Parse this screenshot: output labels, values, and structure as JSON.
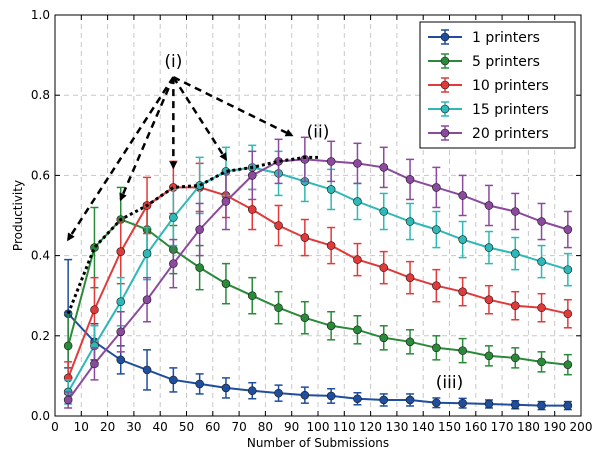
{
  "chart_data": {
    "type": "line",
    "xlabel": "Number of Submissions",
    "ylabel": "Productivity",
    "xlim": [
      0,
      200
    ],
    "ylim": [
      0.0,
      1.0
    ],
    "xticks": [
      "0",
      "10",
      "20",
      "30",
      "40",
      "50",
      "60",
      "70",
      "80",
      "90",
      "100",
      "110",
      "120",
      "130",
      "140",
      "150",
      "160",
      "170",
      "180",
      "190",
      "200"
    ],
    "yticks": [
      "0.0",
      "0.2",
      "0.4",
      "0.6",
      "0.8",
      "1.0"
    ],
    "grid": true,
    "legend_position": "top-right",
    "x": [
      5,
      15,
      25,
      35,
      45,
      55,
      65,
      75,
      85,
      95,
      105,
      115,
      125,
      135,
      145,
      155,
      165,
      175,
      185,
      195
    ],
    "series": [
      {
        "name": "1 printers",
        "color": "#1f4e9e",
        "x": [
          5,
          15,
          25,
          35,
          45,
          55,
          65,
          75,
          85,
          95,
          105,
          115,
          125,
          135,
          145,
          155,
          165,
          175,
          185,
          195
        ],
        "values": [
          0.255,
          0.185,
          0.14,
          0.115,
          0.09,
          0.08,
          0.07,
          0.063,
          0.057,
          0.052,
          0.05,
          0.043,
          0.04,
          0.04,
          0.033,
          0.032,
          0.03,
          0.028,
          0.026,
          0.026
        ],
        "errors": [
          0.135,
          0.045,
          0.035,
          0.05,
          0.03,
          0.025,
          0.025,
          0.02,
          0.02,
          0.02,
          0.018,
          0.015,
          0.015,
          0.015,
          0.012,
          0.012,
          0.01,
          0.01,
          0.01,
          0.01
        ]
      },
      {
        "name": "5 printers",
        "color": "#2a8a3a",
        "x": [
          5,
          15,
          25,
          35,
          45,
          55,
          65,
          75,
          85,
          95,
          105,
          115,
          125,
          135,
          145,
          155,
          165,
          175,
          185,
          195
        ],
        "values": [
          0.175,
          0.42,
          0.49,
          0.465,
          0.415,
          0.37,
          0.33,
          0.3,
          0.27,
          0.245,
          0.225,
          0.215,
          0.195,
          0.185,
          0.17,
          0.163,
          0.15,
          0.145,
          0.135,
          0.128
        ],
        "errors": [
          0.08,
          0.1,
          0.08,
          0.065,
          0.06,
          0.055,
          0.05,
          0.045,
          0.04,
          0.04,
          0.035,
          0.035,
          0.03,
          0.03,
          0.03,
          0.03,
          0.025,
          0.025,
          0.025,
          0.025
        ]
      },
      {
        "name": "10 printers",
        "color": "#e03a3a",
        "x": [
          5,
          15,
          25,
          35,
          45,
          55,
          65,
          75,
          85,
          95,
          105,
          115,
          125,
          135,
          145,
          155,
          165,
          175,
          185,
          195
        ],
        "values": [
          0.095,
          0.265,
          0.41,
          0.525,
          0.57,
          0.57,
          0.55,
          0.515,
          0.475,
          0.445,
          0.425,
          0.39,
          0.37,
          0.345,
          0.325,
          0.31,
          0.29,
          0.275,
          0.27,
          0.255
        ],
        "errors": [
          0.04,
          0.08,
          0.08,
          0.07,
          0.065,
          0.06,
          0.055,
          0.05,
          0.05,
          0.045,
          0.045,
          0.04,
          0.04,
          0.04,
          0.04,
          0.035,
          0.035,
          0.035,
          0.035,
          0.035
        ]
      },
      {
        "name": "15 printers",
        "color": "#2fb8b8",
        "x": [
          5,
          15,
          25,
          35,
          45,
          55,
          65,
          75,
          85,
          95,
          105,
          115,
          125,
          135,
          145,
          155,
          165,
          175,
          185,
          195
        ],
        "values": [
          0.06,
          0.175,
          0.285,
          0.405,
          0.495,
          0.575,
          0.61,
          0.62,
          0.605,
          0.585,
          0.565,
          0.535,
          0.51,
          0.485,
          0.465,
          0.44,
          0.42,
          0.405,
          0.385,
          0.365
        ],
        "errors": [
          0.03,
          0.05,
          0.06,
          0.065,
          0.07,
          0.07,
          0.06,
          0.055,
          0.055,
          0.05,
          0.05,
          0.045,
          0.045,
          0.045,
          0.045,
          0.045,
          0.04,
          0.04,
          0.04,
          0.04
        ]
      },
      {
        "name": "20 printers",
        "color": "#8b4a9e",
        "x": [
          5,
          15,
          25,
          35,
          45,
          55,
          65,
          75,
          85,
          95,
          105,
          115,
          125,
          135,
          145,
          155,
          165,
          175,
          185,
          195
        ],
        "values": [
          0.04,
          0.13,
          0.21,
          0.29,
          0.38,
          0.465,
          0.535,
          0.6,
          0.635,
          0.64,
          0.635,
          0.63,
          0.62,
          0.59,
          0.57,
          0.55,
          0.525,
          0.51,
          0.485,
          0.465
        ],
        "errors": [
          0.02,
          0.04,
          0.05,
          0.055,
          0.06,
          0.065,
          0.07,
          0.06,
          0.055,
          0.055,
          0.05,
          0.05,
          0.05,
          0.05,
          0.05,
          0.05,
          0.05,
          0.045,
          0.045,
          0.045
        ]
      }
    ],
    "peak_envelope": {
      "style": "black dotted",
      "x": [
        5,
        15,
        25,
        35,
        45,
        55,
        65,
        75,
        85,
        95,
        100
      ],
      "values": [
        0.255,
        0.42,
        0.49,
        0.525,
        0.57,
        0.575,
        0.61,
        0.62,
        0.635,
        0.645,
        0.645
      ]
    },
    "annotations": [
      {
        "label": "(i)",
        "x": 45,
        "y": 0.87,
        "arrows_to": [
          [
            5,
            0.44
          ],
          [
            25,
            0.54
          ],
          [
            45,
            0.62
          ],
          [
            65,
            0.64
          ],
          [
            90,
            0.7
          ]
        ]
      },
      {
        "label": "(ii)",
        "x": 100,
        "y": 0.695
      },
      {
        "label": "(iii)",
        "x": 150,
        "y": 0.07
      }
    ]
  }
}
